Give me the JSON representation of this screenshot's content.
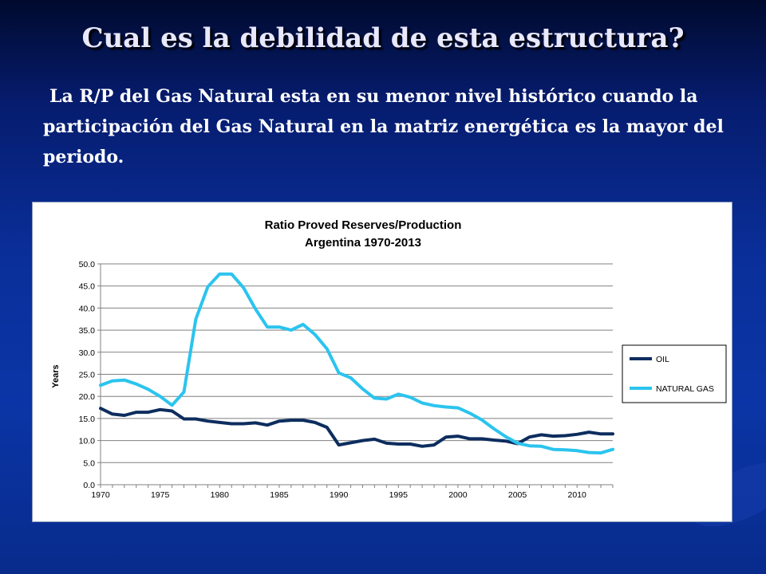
{
  "slide": {
    "title": "Cual es la debilidad de esta estructura?",
    "subtitle": "La R/P del Gas Natural esta en su menor nivel histórico cuando la participación del Gas Natural en la matriz energética es la mayor del periodo."
  },
  "colors": {
    "oil": "#0d2d5e",
    "natural_gas": "#2bc4ee"
  },
  "chart_data": {
    "type": "line",
    "title": "Ratio Proved Reserves/Production",
    "subtitle": "Argentina 1970-2013",
    "xlabel": "",
    "ylabel": "Years",
    "ylim": [
      0,
      50
    ],
    "xlim": [
      1970,
      2013
    ],
    "y_ticks": [
      "0.0",
      "5.0",
      "10.0",
      "15.0",
      "20.0",
      "25.0",
      "30.0",
      "35.0",
      "40.0",
      "45.0",
      "50.0"
    ],
    "x_ticks": [
      "1970",
      "1975",
      "1980",
      "1985",
      "1990",
      "1995",
      "2000",
      "2005",
      "2010"
    ],
    "grid": "horizontal",
    "legend_position": "right",
    "x": [
      1970,
      1971,
      1972,
      1973,
      1974,
      1975,
      1976,
      1977,
      1978,
      1979,
      1980,
      1981,
      1982,
      1983,
      1984,
      1985,
      1986,
      1987,
      1988,
      1989,
      1990,
      1991,
      1992,
      1993,
      1994,
      1995,
      1996,
      1997,
      1998,
      1999,
      2000,
      2001,
      2002,
      2003,
      2004,
      2005,
      2006,
      2007,
      2008,
      2009,
      2010,
      2011,
      2012,
      2013
    ],
    "series": [
      {
        "name": "OIL",
        "values": [
          17.3,
          16.0,
          15.7,
          16.4,
          16.4,
          17.0,
          16.7,
          14.9,
          14.9,
          14.4,
          14.1,
          13.8,
          13.8,
          14.0,
          13.5,
          14.4,
          14.6,
          14.6,
          14.1,
          13.0,
          9.0,
          9.5,
          10.0,
          10.3,
          9.4,
          9.2,
          9.2,
          8.7,
          9.0,
          10.8,
          11.0,
          10.4,
          10.4,
          10.1,
          9.9,
          9.3,
          10.8,
          11.3,
          11.0,
          11.1,
          11.4,
          11.9,
          11.5,
          11.5
        ]
      },
      {
        "name": "NATURAL GAS",
        "values": [
          22.5,
          23.5,
          23.7,
          22.8,
          21.6,
          20.0,
          18.0,
          21.0,
          37.5,
          44.8,
          47.7,
          47.7,
          44.6,
          39.8,
          35.7,
          35.7,
          35.0,
          36.3,
          34.0,
          30.8,
          25.3,
          24.2,
          21.7,
          19.6,
          19.4,
          20.5,
          19.8,
          18.5,
          17.9,
          17.6,
          17.4,
          16.2,
          14.7,
          12.7,
          10.9,
          9.4,
          8.8,
          8.7,
          8.0,
          7.9,
          7.7,
          7.3,
          7.2,
          8.0
        ]
      }
    ]
  }
}
